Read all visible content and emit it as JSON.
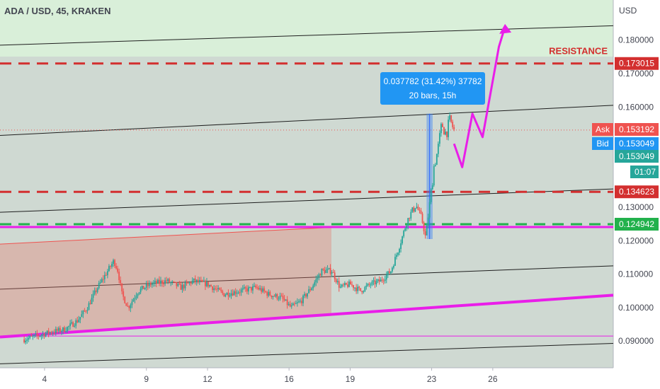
{
  "title": "ADA / USD, 45, KRAKEN",
  "currency": "USD",
  "chart_data": {
    "type": "candlestick",
    "symbol": "ADA / USD",
    "interval": "45",
    "exchange": "KRAKEN",
    "ylim": [
      0.082,
      0.192
    ],
    "y_ticks": [
      {
        "value": 0.18,
        "label": "0.180000"
      },
      {
        "value": 0.17,
        "label": "0.170000"
      },
      {
        "value": 0.16,
        "label": "0.160000"
      },
      {
        "value": 0.13,
        "label": "0.130000"
      },
      {
        "value": 0.12,
        "label": "0.120000"
      },
      {
        "value": 0.11,
        "label": "0.110000"
      },
      {
        "value": 0.1,
        "label": "0.100000"
      },
      {
        "value": 0.09,
        "label": "0.090000"
      }
    ],
    "x_ticks": [
      {
        "day": 4,
        "label": "4"
      },
      {
        "day": 9,
        "label": "9"
      },
      {
        "day": 12,
        "label": "12"
      },
      {
        "day": 16,
        "label": "16"
      },
      {
        "day": 19,
        "label": "19"
      },
      {
        "day": 23,
        "label": "23"
      },
      {
        "day": 26,
        "label": "26"
      }
    ],
    "price_path": [
      [
        3.0,
        0.0905
      ],
      [
        4.2,
        0.0925
      ],
      [
        5.0,
        0.0935
      ],
      [
        5.6,
        0.096
      ],
      [
        6.1,
        0.1
      ],
      [
        6.6,
        0.106
      ],
      [
        7.0,
        0.11
      ],
      [
        7.4,
        0.114
      ],
      [
        7.6,
        0.111
      ],
      [
        7.8,
        0.104
      ],
      [
        8.1,
        0.1
      ],
      [
        8.6,
        0.105
      ],
      [
        9.2,
        0.107
      ],
      [
        10.0,
        0.108
      ],
      [
        10.7,
        0.106
      ],
      [
        11.3,
        0.108
      ],
      [
        12.0,
        0.107
      ],
      [
        12.8,
        0.104
      ],
      [
        13.6,
        0.105
      ],
      [
        14.4,
        0.106
      ],
      [
        15.0,
        0.104
      ],
      [
        15.6,
        0.103
      ],
      [
        16.1,
        0.1
      ],
      [
        16.6,
        0.102
      ],
      [
        17.1,
        0.106
      ],
      [
        17.6,
        0.111
      ],
      [
        18.1,
        0.111
      ],
      [
        18.5,
        0.106
      ],
      [
        19.0,
        0.107
      ],
      [
        19.5,
        0.105
      ],
      [
        20.0,
        0.107
      ],
      [
        20.5,
        0.108
      ],
      [
        21.0,
        0.111
      ],
      [
        21.4,
        0.118
      ],
      [
        21.8,
        0.126
      ],
      [
        22.2,
        0.131
      ],
      [
        22.5,
        0.127
      ],
      [
        22.7,
        0.121
      ],
      [
        22.95,
        0.133
      ],
      [
        23.1,
        0.142
      ],
      [
        23.3,
        0.147
      ],
      [
        23.5,
        0.155
      ],
      [
        23.7,
        0.152
      ],
      [
        23.9,
        0.156
      ],
      [
        24.1,
        0.153
      ]
    ],
    "levels": [
      {
        "name": "RESISTANCE",
        "value": 0.173015,
        "label": "0.173015",
        "color": "#d32f2f",
        "style": "dashed"
      },
      {
        "name": "",
        "value": 0.134623,
        "label": "0.134623",
        "color": "#d32f2f",
        "style": "dashed"
      },
      {
        "name": "",
        "value": 0.124942,
        "label": "0.124942",
        "color": "#22b14c",
        "style": "dashed"
      }
    ],
    "price_tags": [
      {
        "prefix": "Ask",
        "value": 0.153192,
        "label": "0.153192",
        "color": "#ef5350"
      },
      {
        "prefix": "Bid",
        "value": 0.153049,
        "label": "0.153049",
        "color": "#2196f3"
      },
      {
        "prefix": "",
        "value": 0.153049,
        "label": "0.153049",
        "color": "#26a69a"
      },
      {
        "prefix": "",
        "value": 0.1414,
        "label": "01:07",
        "color": "#26a69a"
      }
    ],
    "measure": {
      "text_line1": "0.037782 (31.42%) 37782",
      "text_line2": "20 bars, 15h",
      "from_value": 0.1205,
      "to_value": 0.158,
      "start_day": 22.75,
      "end_day": 23.05
    },
    "annotation_label": "RESISTANCE",
    "colors": {
      "up": "#26a69a",
      "down": "#ef5350",
      "magenta": "#e91ee9",
      "background": "#d8e8dc"
    }
  }
}
